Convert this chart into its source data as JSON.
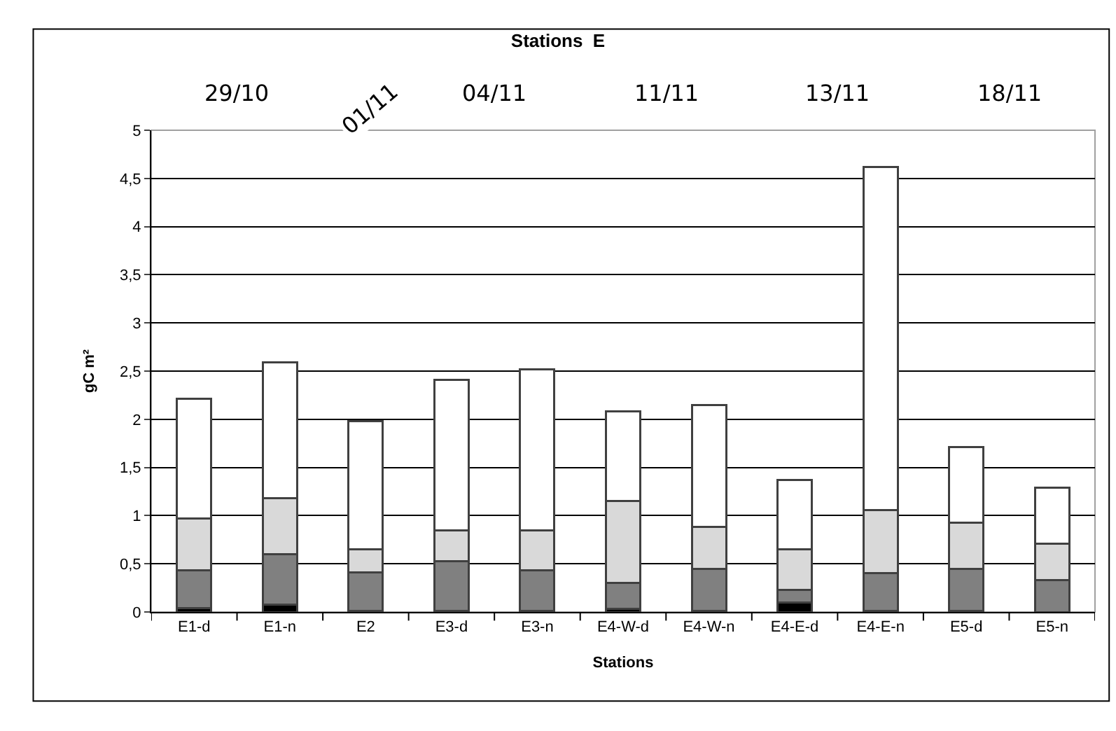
{
  "chart_data": {
    "type": "bar",
    "title": "Stations  E",
    "xlabel": "Stations",
    "ylabel": "gC m²",
    "categories": [
      "E1-d",
      "E1-n",
      "E2",
      "E3-d",
      "E3-n",
      "E4-W-d",
      "E4-W-n",
      "E4-E-d",
      "E4-E-n",
      "E5-d",
      "E5-n"
    ],
    "stacked": true,
    "series": [
      {
        "color": "#000000",
        "values": [
          0.04,
          0.08,
          0.01,
          0.01,
          0.01,
          0.03,
          0.01,
          0.1,
          0.01,
          0.01,
          0
        ]
      },
      {
        "color": "#808080",
        "values": [
          0.39,
          0.52,
          0.4,
          0.52,
          0.42,
          0.27,
          0.44,
          0.13,
          0.39,
          0.44,
          0.33
        ]
      },
      {
        "color": "#d9d9d9",
        "values": [
          0.54,
          0.58,
          0.24,
          0.32,
          0.42,
          0.85,
          0.43,
          0.42,
          0.66,
          0.48,
          0.38
        ]
      },
      {
        "color": "#ffffff",
        "values": [
          1.24,
          1.41,
          1.33,
          1.56,
          1.67,
          0.93,
          1.27,
          0.72,
          3.56,
          0.78,
          0.58
        ]
      }
    ],
    "ylim": [
      0,
      5
    ],
    "yticks": [
      0,
      {
        "value": 0.5,
        "label": "0,5"
      },
      1,
      {
        "value": 1.5,
        "label": "1,5"
      },
      2,
      {
        "value": 2.5,
        "label": "2,5"
      },
      3,
      {
        "value": 3.5,
        "label": "3,5"
      },
      4,
      {
        "value": 4.5,
        "label": "4,5"
      },
      5
    ],
    "grid": "y",
    "annotations": [
      "29/10",
      "01/11",
      "04/11",
      "11/11",
      "13/11",
      "18/11"
    ]
  }
}
